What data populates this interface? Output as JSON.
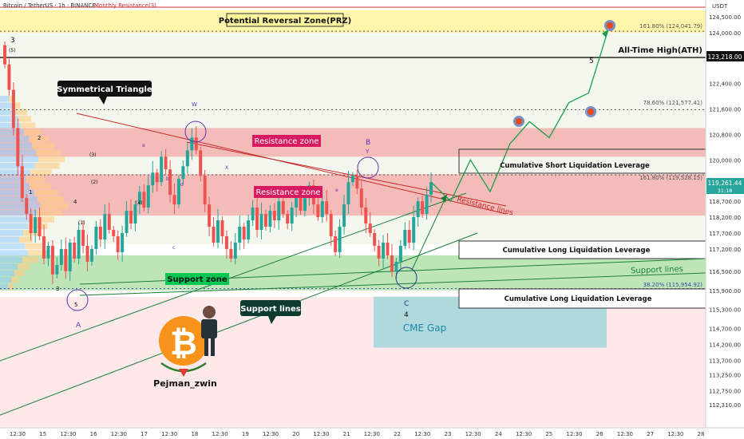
{
  "header": {
    "symbol": "Bitcoin / TetherUS · 1h · BINANCE",
    "currency": "USDT",
    "monthly_resistance": "Monthly Resistance(3)"
  },
  "labels": {
    "prz": "Potential Reversal Zone(PRZ)",
    "ath": "All-Time High(ATH)",
    "sym_triangle": "Symmetrical Triangle",
    "resistance_zone_1": "Resistance zone",
    "resistance_zone_2": "Resistance zone",
    "support_zone": "Support zone",
    "support_lines_box": "Support lines",
    "support_lines_text": "Support lines",
    "resistance_lines": "Resistance lines",
    "cme_gap": "CME Gap",
    "short_liq": "Cumulative Short Liquidation Leverage",
    "long_liq_1": "Cumulative Long Liquidation Leverage",
    "long_liq_2": "Cumulative Long Liquidation Leverage",
    "fib_1618_top": "161.80% (124,041.79)",
    "fib_786": "78.60% (121,577.41)",
    "fib_1618_mid": "161.80% (119,528.15)",
    "fib_382": "38.20% (115,954.92)",
    "author": "Pejman_zwin",
    "price_badge": "119,261.44",
    "price_badge_time": "31:18",
    "ath_badge": "123,218.00"
  },
  "wave_labels": {
    "w3": "3",
    "w5p": "(5)",
    "wA": "A",
    "wB": "B",
    "wC": "C",
    "w4": "4",
    "w5": "5",
    "wW": "W",
    "wX": "X",
    "wY": "Y",
    "wa": "a",
    "wb": "b",
    "wc": "c",
    "wd": "d",
    "we": "e",
    "n1": "1",
    "n2": "2",
    "n3": "3",
    "n4": "4",
    "n5": "5",
    "p1": "(1)",
    "p2": "(2)",
    "p3": "(3)",
    "p4": "(4)"
  },
  "colors": {
    "up": "#26a69a",
    "down": "#ef5350",
    "resistance": "#f4a3a3",
    "support": "#a8dca0",
    "prz": "#fff59d",
    "cme": "#a7d7dd",
    "path": "#1b9e4b"
  },
  "chart_data": {
    "type": "candlestick",
    "title": "Bitcoin / TetherUS · 1h · BINANCE",
    "y_axis": {
      "unit": "USDT",
      "ylim": [
        112000,
        125200
      ],
      "ticks": [
        "124,500.00",
        "124,000.00",
        "123,218.00",
        "122,400.00",
        "121,600.00",
        "120,800.00",
        "120,000.00",
        "119,261.44",
        "118,700.00",
        "118,200.00",
        "117,700.00",
        "117,200.00",
        "116,500.00",
        "115,900.00",
        "115,300.00",
        "114,700.00",
        "114,200.00",
        "113,700.00",
        "113,250.00",
        "112,750.00",
        "112,310.00"
      ]
    },
    "x_axis": {
      "ticks": [
        "12:30",
        "15",
        "12:30",
        "16",
        "12:30",
        "17",
        "12:30",
        "18",
        "12:30",
        "19",
        "12:30",
        "20",
        "12:30",
        "21",
        "12:30",
        "22",
        "12:30",
        "23",
        "12:30",
        "24",
        "12:30",
        "25",
        "12:30",
        "26",
        "12:30",
        "27",
        "12:30",
        "28"
      ]
    },
    "levels": {
      "ath": 123218,
      "fib_1618_top": 124041.79,
      "fib_786": 121577.41,
      "fib_1618_mid": 119528.15,
      "fib_382": 115954.92,
      "last_price": 119261.44
    },
    "zones": {
      "prz": [
        124000,
        124700
      ],
      "resistance_upper": [
        120100,
        121000
      ],
      "resistance_lower": [
        118250,
        119550
      ],
      "support": [
        115900,
        117000
      ],
      "cme_gap": [
        114100,
        115700
      ]
    },
    "projected_path": [
      119300,
      118700,
      120000,
      119000,
      120500,
      121200,
      120700,
      121800,
      122100,
      124100
    ],
    "closes": [
      123000,
      122200,
      121000,
      119800,
      118800,
      118300,
      117700,
      118200,
      117600,
      116900,
      117300,
      116400,
      116700,
      117200,
      116500,
      117400,
      116900,
      117800,
      117300,
      116800,
      117200,
      117900,
      117500,
      118300,
      117800,
      117600,
      117100,
      117700,
      118400,
      118000,
      118600,
      119000,
      118500,
      119200,
      119600,
      119300,
      120100,
      119700,
      118900,
      118600,
      119400,
      119800,
      120300,
      120700,
      120300,
      119500,
      118600,
      117900,
      117400,
      118100,
      117600,
      117200,
      116900,
      117400,
      117900,
      117500,
      118100,
      118500,
      117800,
      118300,
      117900,
      118400,
      118100,
      118700,
      118300,
      118000,
      118500,
      118900,
      118400,
      118800,
      119200,
      118600,
      118200,
      118700,
      118300,
      117600,
      117100,
      117900,
      118600,
      119300,
      119500,
      119100,
      118500,
      118000,
      117700,
      117300,
      116900,
      117400,
      117000,
      116500,
      116800,
      117300,
      117800,
      117400,
      118200,
      118700,
      118300,
      118900,
      119300
    ]
  }
}
